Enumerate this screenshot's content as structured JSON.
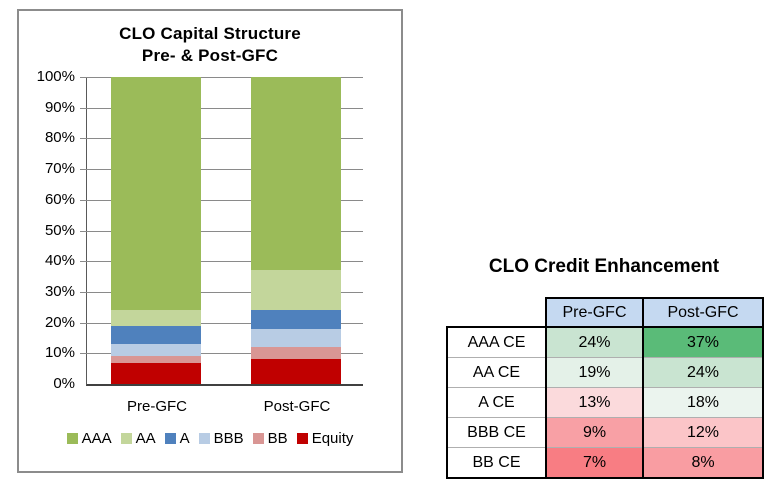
{
  "chart_data": [
    {
      "type": "bar",
      "stacked": true,
      "title": "CLO Capital Structure Pre- & Post-GFC",
      "title_lines": [
        "CLO Capital Structure",
        "Pre- & Post-GFC"
      ],
      "categories": [
        "Pre-GFC",
        "Post-GFC"
      ],
      "series": [
        {
          "name": "AAA",
          "color": "#9BBB59",
          "values": [
            76,
            63
          ]
        },
        {
          "name": "AA",
          "color": "#C3D69B",
          "values": [
            5,
            13
          ]
        },
        {
          "name": "A",
          "color": "#4F81BD",
          "values": [
            6,
            6
          ]
        },
        {
          "name": "BBB",
          "color": "#B8CCE4",
          "values": [
            4,
            6
          ]
        },
        {
          "name": "BB",
          "color": "#D99694",
          "values": [
            2,
            4
          ]
        },
        {
          "name": "Equity",
          "color": "#C00000",
          "values": [
            7,
            8
          ]
        }
      ],
      "ylim": [
        0,
        100
      ],
      "ytick_labels": [
        "100%",
        "90%",
        "80%",
        "70%",
        "60%",
        "50%",
        "40%",
        "30%",
        "20%",
        "10%",
        "0%"
      ],
      "grid": true,
      "legend_position": "bottom"
    },
    {
      "type": "table",
      "title": "CLO Credit Enhancement",
      "columns": [
        "",
        "Pre-GFC",
        "Post-GFC"
      ],
      "header_bg": "#C5D9F1",
      "rows": [
        {
          "label": "AAA CE",
          "values": [
            "24%",
            "37%"
          ],
          "colors": [
            "#C9E4D1",
            "#5ABB78"
          ]
        },
        {
          "label": "AA CE",
          "values": [
            "19%",
            "24%"
          ],
          "colors": [
            "#E4F1E8",
            "#C9E4D1"
          ]
        },
        {
          "label": "A CE",
          "values": [
            "13%",
            "18%"
          ],
          "colors": [
            "#FBDADC",
            "#EBF4EE"
          ]
        },
        {
          "label": "BBB CE",
          "values": [
            "9%",
            "12%"
          ],
          "colors": [
            "#F8A0A5",
            "#FBC5C8"
          ]
        },
        {
          "label": "BB CE",
          "values": [
            "7%",
            "8%"
          ],
          "colors": [
            "#F87D83",
            "#F99DA2"
          ]
        }
      ]
    }
  ]
}
